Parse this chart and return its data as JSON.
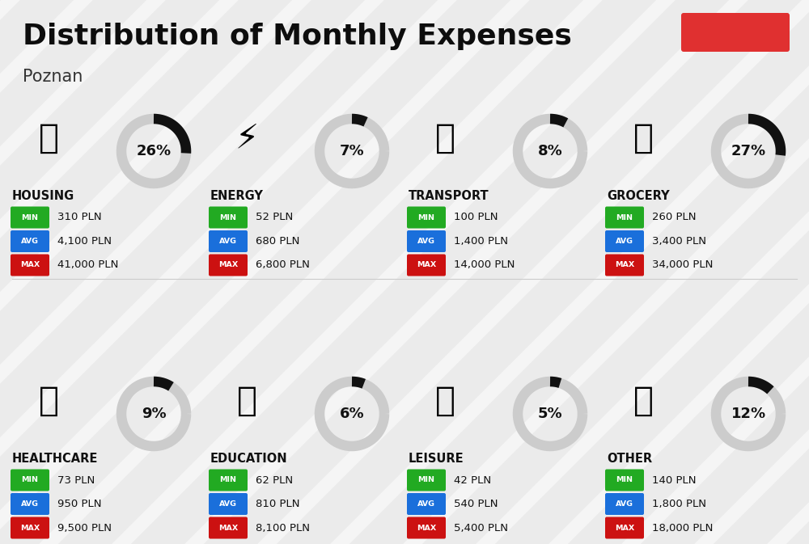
{
  "title": "Distribution of Monthly Expenses",
  "subtitle": "Poznan",
  "background_color": "#ebebeb",
  "categories": [
    {
      "name": "HOUSING",
      "pct": 26,
      "min_val": "310 PLN",
      "avg_val": "4,100 PLN",
      "max_val": "41,000 PLN",
      "col": 0,
      "row": 0
    },
    {
      "name": "ENERGY",
      "pct": 7,
      "min_val": "52 PLN",
      "avg_val": "680 PLN",
      "max_val": "6,800 PLN",
      "col": 1,
      "row": 0
    },
    {
      "name": "TRANSPORT",
      "pct": 8,
      "min_val": "100 PLN",
      "avg_val": "1,400 PLN",
      "max_val": "14,000 PLN",
      "col": 2,
      "row": 0
    },
    {
      "name": "GROCERY",
      "pct": 27,
      "min_val": "260 PLN",
      "avg_val": "3,400 PLN",
      "max_val": "34,000 PLN",
      "col": 3,
      "row": 0
    },
    {
      "name": "HEALTHCARE",
      "pct": 9,
      "min_val": "73 PLN",
      "avg_val": "950 PLN",
      "max_val": "9,500 PLN",
      "col": 0,
      "row": 1
    },
    {
      "name": "EDUCATION",
      "pct": 6,
      "min_val": "62 PLN",
      "avg_val": "810 PLN",
      "max_val": "8,100 PLN",
      "col": 1,
      "row": 1
    },
    {
      "name": "LEISURE",
      "pct": 5,
      "min_val": "42 PLN",
      "avg_val": "540 PLN",
      "max_val": "5,400 PLN",
      "col": 2,
      "row": 1
    },
    {
      "name": "OTHER",
      "pct": 12,
      "min_val": "140 PLN",
      "avg_val": "1,800 PLN",
      "max_val": "18,000 PLN",
      "col": 3,
      "row": 1
    }
  ],
  "color_min": "#22aa22",
  "color_avg": "#1a6fdb",
  "color_max": "#cc1111",
  "color_donut_filled": "#111111",
  "color_donut_empty": "#cccccc",
  "red_rect_color": "#e03030",
  "stripe_color": "#ffffff",
  "divider_color": "#cccccc"
}
